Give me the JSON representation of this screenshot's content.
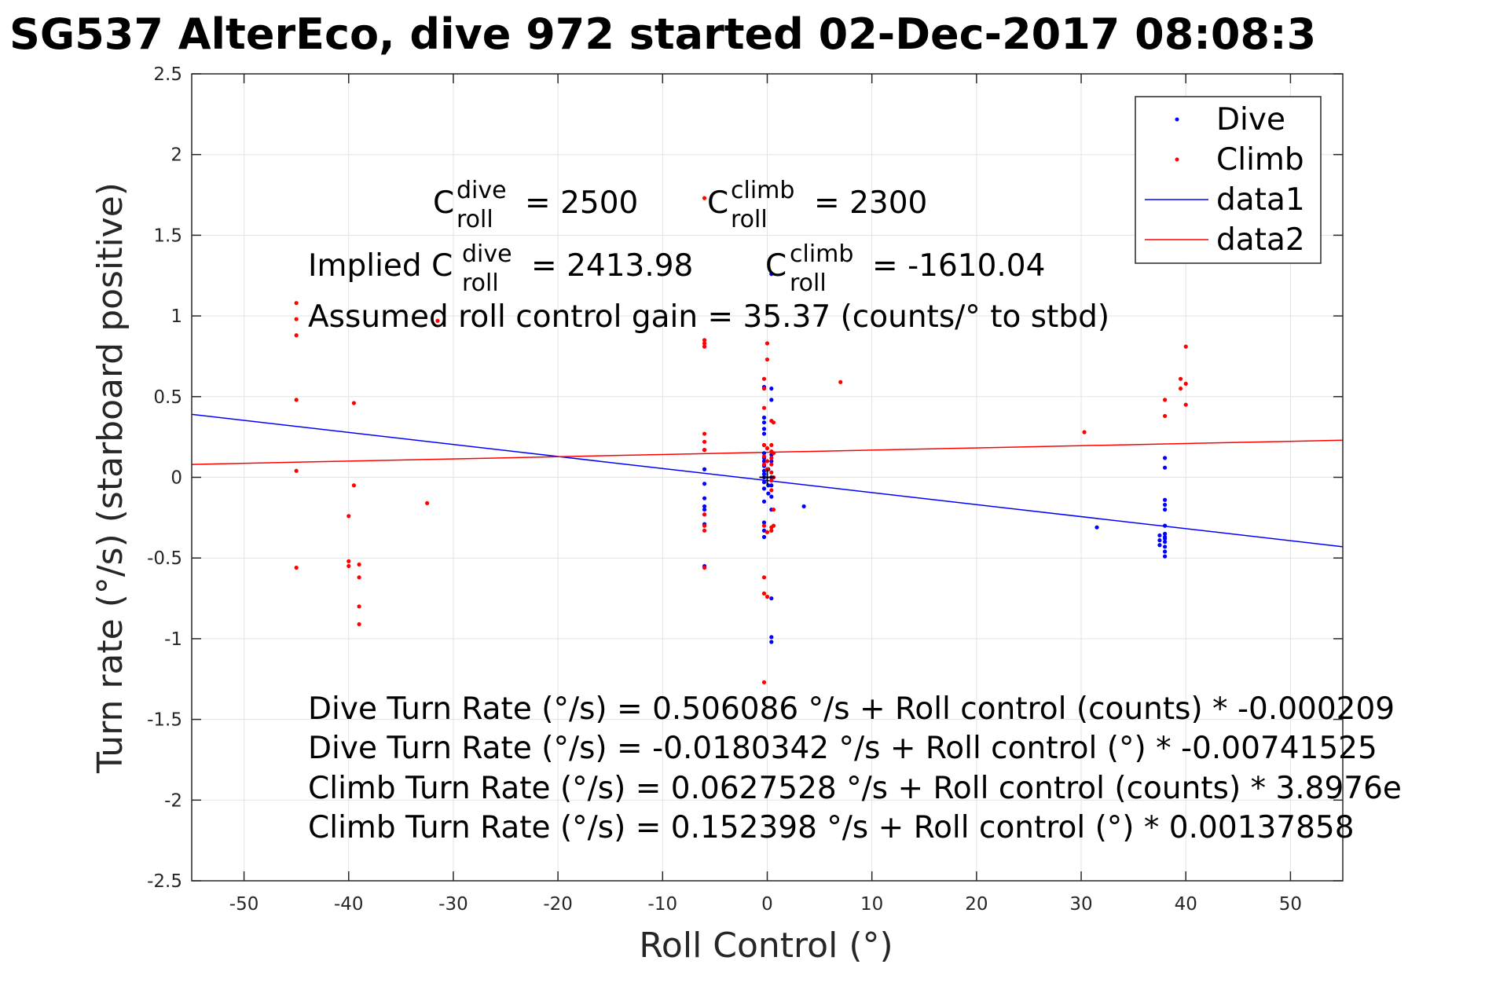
{
  "chart_data": {
    "type": "scatter",
    "title": "SG537 AlterEco, dive 972 started 02-Dec-2017 08:08:3",
    "xlabel": "Roll Control (°)",
    "ylabel": "Turn rate (°/s) (starboard positive)",
    "xlim": [
      -55,
      55
    ],
    "ylim": [
      -2.5,
      2.5
    ],
    "x_ticks": [
      -50,
      -40,
      -30,
      -20,
      -10,
      0,
      10,
      20,
      30,
      40,
      50
    ],
    "x_tick_labels": [
      "-50",
      "-40",
      "-30",
      "-20",
      "-10",
      "0",
      "10",
      "20",
      "30",
      "40",
      "50"
    ],
    "y_ticks": [
      -2.5,
      -2,
      -1.5,
      -1,
      -0.5,
      0,
      0.5,
      1,
      1.5,
      2,
      2.5
    ],
    "y_tick_labels": [
      "-2.5",
      "-2",
      "-1.5",
      "-1",
      "-0.5",
      "0",
      "0.5",
      "1",
      "1.5",
      "2",
      "2.5"
    ],
    "grid": true,
    "legend_position": "top-right",
    "series": [
      {
        "name": "Dive",
        "kind": "points",
        "color": "#0000ff",
        "points": [
          [
            -6,
            0.17
          ],
          [
            -6,
            0.05
          ],
          [
            -6,
            -0.04
          ],
          [
            -6,
            -0.13
          ],
          [
            -6,
            -0.18
          ],
          [
            -6,
            -0.2
          ],
          [
            -6,
            -0.29
          ],
          [
            -6,
            -0.55
          ],
          [
            -0.3,
            0.56
          ],
          [
            -0.3,
            0.37
          ],
          [
            -0.3,
            0.34
          ],
          [
            -0.3,
            0.3
          ],
          [
            -0.3,
            0.27
          ],
          [
            -0.3,
            0.2
          ],
          [
            -0.3,
            0.15
          ],
          [
            -0.3,
            0.12
          ],
          [
            -0.3,
            0.1
          ],
          [
            -0.3,
            0.07
          ],
          [
            -0.3,
            0.04
          ],
          [
            -0.3,
            0.02
          ],
          [
            -0.3,
            0.0
          ],
          [
            -0.3,
            -0.03
          ],
          [
            -0.3,
            -0.07
          ],
          [
            -0.3,
            -0.15
          ],
          [
            -0.3,
            -0.28
          ],
          [
            -0.3,
            -0.33
          ],
          [
            -0.3,
            -0.37
          ],
          [
            0.1,
            0.05
          ],
          [
            0.1,
            -0.05
          ],
          [
            0.1,
            -0.1
          ],
          [
            0.4,
            1.26
          ],
          [
            0.4,
            0.55
          ],
          [
            0.4,
            0.48
          ],
          [
            0.4,
            0.14
          ],
          [
            0.4,
            0.1
          ],
          [
            0.4,
            0.0
          ],
          [
            0.4,
            -0.05
          ],
          [
            0.4,
            -0.12
          ],
          [
            0.4,
            -0.2
          ],
          [
            0.4,
            -0.75
          ],
          [
            0.4,
            -0.99
          ],
          [
            0.4,
            -1.02
          ],
          [
            3.5,
            -0.18
          ],
          [
            31.5,
            -0.31
          ],
          [
            38,
            0.12
          ],
          [
            38,
            0.06
          ],
          [
            38,
            -0.14
          ],
          [
            38,
            -0.17
          ],
          [
            38,
            -0.2
          ],
          [
            38,
            -0.3
          ],
          [
            38,
            -0.35
          ],
          [
            38,
            -0.37
          ],
          [
            38,
            -0.38
          ],
          [
            38,
            -0.4
          ],
          [
            38,
            -0.43
          ],
          [
            38,
            -0.46
          ],
          [
            38,
            -0.49
          ],
          [
            37.5,
            -0.36
          ],
          [
            37.5,
            -0.39
          ],
          [
            37.5,
            -0.42
          ]
        ]
      },
      {
        "name": "Climb",
        "kind": "points",
        "color": "#ff0000",
        "points": [
          [
            -45,
            1.08
          ],
          [
            -45,
            0.98
          ],
          [
            -45,
            0.88
          ],
          [
            -45,
            0.48
          ],
          [
            -45,
            0.04
          ],
          [
            -45,
            -0.56
          ],
          [
            -40,
            -0.24
          ],
          [
            -40,
            -0.52
          ],
          [
            -40,
            -0.55
          ],
          [
            -39.5,
            0.46
          ],
          [
            -39.5,
            -0.05
          ],
          [
            -39,
            -0.54
          ],
          [
            -39,
            -0.62
          ],
          [
            -39,
            -0.8
          ],
          [
            -39,
            -0.91
          ],
          [
            -31.5,
            0.97
          ],
          [
            -32.5,
            -0.16
          ],
          [
            -6,
            1.73
          ],
          [
            -6,
            0.85
          ],
          [
            -6,
            0.83
          ],
          [
            -6,
            0.81
          ],
          [
            -6,
            0.27
          ],
          [
            -6,
            0.22
          ],
          [
            -6,
            0.17
          ],
          [
            -6,
            -0.23
          ],
          [
            -6,
            -0.3
          ],
          [
            -6,
            -0.33
          ],
          [
            -6,
            -0.56
          ],
          [
            -0.3,
            0.61
          ],
          [
            -0.3,
            0.55
          ],
          [
            -0.3,
            0.43
          ],
          [
            -0.3,
            0.2
          ],
          [
            -0.3,
            0.13
          ],
          [
            -0.3,
            0.08
          ],
          [
            -0.3,
            -0.3
          ],
          [
            -0.3,
            -0.62
          ],
          [
            -0.3,
            -0.72
          ],
          [
            -0.3,
            -1.27
          ],
          [
            0,
            0.83
          ],
          [
            0,
            0.73
          ],
          [
            0,
            0.18
          ],
          [
            0,
            0.1
          ],
          [
            0,
            0.05
          ],
          [
            0,
            -0.34
          ],
          [
            0,
            -0.74
          ],
          [
            0.4,
            0.35
          ],
          [
            0.4,
            0.2
          ],
          [
            0.4,
            0.16
          ],
          [
            0.4,
            0.12
          ],
          [
            0.4,
            0.08
          ],
          [
            0.4,
            0.03
          ],
          [
            0.4,
            -0.02
          ],
          [
            0.4,
            -0.08
          ],
          [
            0.4,
            -0.31
          ],
          [
            0.4,
            -0.33
          ],
          [
            0.6,
            0.34
          ],
          [
            0.6,
            0.15
          ],
          [
            0.6,
            0.0
          ],
          [
            0.6,
            -0.2
          ],
          [
            0.6,
            -0.3
          ],
          [
            7,
            0.59
          ],
          [
            30.3,
            0.28
          ],
          [
            38,
            0.48
          ],
          [
            38,
            0.38
          ],
          [
            39.5,
            0.61
          ],
          [
            39.5,
            0.55
          ],
          [
            40,
            0.81
          ],
          [
            40,
            0.58
          ],
          [
            40,
            0.45
          ]
        ]
      },
      {
        "name": "data1",
        "kind": "line",
        "color": "#0000ff",
        "points": [
          [
            -55,
            0.39
          ],
          [
            55,
            -0.43
          ]
        ]
      },
      {
        "name": "data2",
        "kind": "line",
        "color": "#ff0000",
        "points": [
          [
            -55,
            0.08
          ],
          [
            55,
            0.23
          ]
        ]
      }
    ],
    "marker": {
      "x": 0,
      "y": 0,
      "symbol": "+"
    },
    "annotations": {
      "coef_dive": {
        "base": "C",
        "sup": "dive",
        "sub": "roll",
        "value": "= 2500"
      },
      "coef_climb": {
        "base": "C",
        "sup": "climb",
        "sub": "roll",
        "value": "= 2300"
      },
      "implied_prefix": "Implied C",
      "implied_dive": {
        "sup": "dive",
        "sub": "roll",
        "value": "= 2413.98"
      },
      "implied_climb": {
        "base": "C",
        "sup": "climb",
        "sub": "roll",
        "value": "= -1610.04"
      },
      "gain_line": "Assumed roll control gain = 35.37 (counts/° to stbd)",
      "fit_lines": [
        "Dive Turn Rate (°/s) = 0.506086 °/s + Roll control (counts) * -0.000209",
        "Dive Turn Rate (°/s) = -0.0180342 °/s + Roll control (°) * -0.00741525",
        "Climb Turn Rate (°/s) = 0.0627528 °/s + Roll control (counts) * 3.8976e",
        "Climb Turn Rate (°/s) = 0.152398 °/s + Roll control (°) * 0.00137858"
      ]
    }
  }
}
